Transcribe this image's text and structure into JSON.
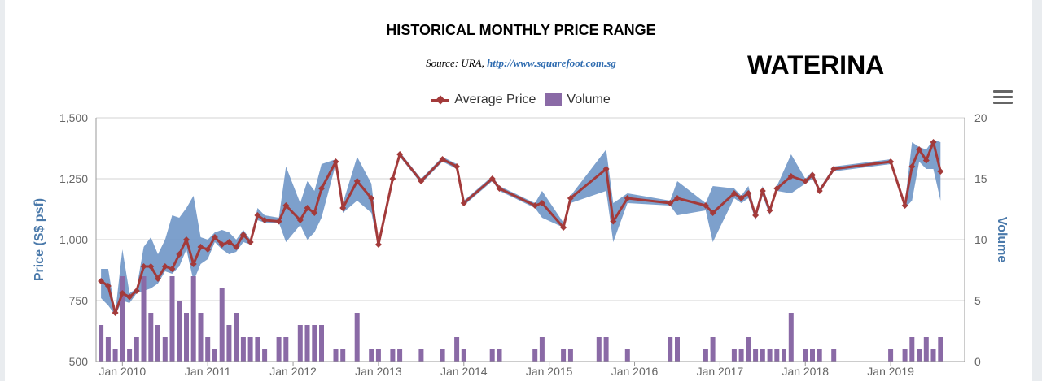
{
  "header": {
    "title": "HISTORICAL MONTHLY PRICE RANGE",
    "source_prefix": "Source: URA,",
    "source_link": "http://www.squarefoot.com.sg",
    "project_name": "WATERINA"
  },
  "legend": {
    "average_price": "Average Price",
    "volume": "Volume"
  },
  "colors": {
    "price_line": "#a33a3a",
    "range_band": "#6f96c7",
    "volume_bar": "#8a6aa6",
    "axis_title": "#4a79aa"
  },
  "chart_data": {
    "type": "line",
    "title": "HISTORICAL MONTHLY PRICE RANGE",
    "ylabel": "Price (S$ psf)",
    "y2label": "Volume",
    "ylim": [
      500,
      1500
    ],
    "y2lim": [
      0,
      20
    ],
    "yticks": [
      "500",
      "750",
      "1,000",
      "1,250",
      "1,500"
    ],
    "y2ticks": [
      "0",
      "5",
      "10",
      "15",
      "20"
    ],
    "xticks": [
      "Jan 2010",
      "Jan 2011",
      "Jan 2012",
      "Jan 2013",
      "Jan 2014",
      "Jan 2015",
      "Jan 2016",
      "Jan 2017",
      "Jan 2018",
      "Jan 2019"
    ],
    "grid": true,
    "legend_position": "top-center",
    "series": [
      {
        "name": "Average Price",
        "points": [
          [
            "2009-10",
            830
          ],
          [
            "2009-11",
            810
          ],
          [
            "2009-12",
            700
          ],
          [
            "2010-01",
            780
          ],
          [
            "2010-02",
            765
          ],
          [
            "2010-03",
            790
          ],
          [
            "2010-04",
            890
          ],
          [
            "2010-05",
            890
          ],
          [
            "2010-06",
            840
          ],
          [
            "2010-07",
            890
          ],
          [
            "2010-08",
            880
          ],
          [
            "2010-09",
            940
          ],
          [
            "2010-10",
            1000
          ],
          [
            "2010-11",
            900
          ],
          [
            "2010-12",
            970
          ],
          [
            "2011-01",
            960
          ],
          [
            "2011-02",
            1010
          ],
          [
            "2011-03",
            980
          ],
          [
            "2011-04",
            990
          ],
          [
            "2011-05",
            970
          ],
          [
            "2011-06",
            1020
          ],
          [
            "2011-07",
            990
          ],
          [
            "2011-08",
            1100
          ],
          [
            "2011-09",
            1080
          ],
          [
            "2011-11",
            1075
          ],
          [
            "2011-12",
            1140
          ],
          [
            "2012-02",
            1080
          ],
          [
            "2012-03",
            1130
          ],
          [
            "2012-04",
            1110
          ],
          [
            "2012-05",
            1210
          ],
          [
            "2012-07",
            1320
          ],
          [
            "2012-08",
            1130
          ],
          [
            "2012-10",
            1240
          ],
          [
            "2012-12",
            1170
          ],
          [
            "2013-01",
            980
          ],
          [
            "2013-03",
            1250
          ],
          [
            "2013-04",
            1350
          ],
          [
            "2013-07",
            1240
          ],
          [
            "2013-10",
            1330
          ],
          [
            "2013-12",
            1300
          ],
          [
            "2014-01",
            1150
          ],
          [
            "2014-05",
            1250
          ],
          [
            "2014-06",
            1210
          ],
          [
            "2014-11",
            1140
          ],
          [
            "2014-12",
            1150
          ],
          [
            "2015-03",
            1050
          ],
          [
            "2015-04",
            1170
          ],
          [
            "2015-09",
            1290
          ],
          [
            "2015-10",
            1075
          ],
          [
            "2015-12",
            1170
          ],
          [
            "2016-06",
            1150
          ],
          [
            "2016-07",
            1170
          ],
          [
            "2016-11",
            1140
          ],
          [
            "2016-12",
            1110
          ],
          [
            "2017-03",
            1190
          ],
          [
            "2017-04",
            1170
          ],
          [
            "2017-05",
            1190
          ],
          [
            "2017-06",
            1100
          ],
          [
            "2017-07",
            1200
          ],
          [
            "2017-08",
            1120
          ],
          [
            "2017-09",
            1210
          ],
          [
            "2017-11",
            1260
          ],
          [
            "2018-01",
            1240
          ],
          [
            "2018-02",
            1265
          ],
          [
            "2018-03",
            1200
          ],
          [
            "2018-05",
            1290
          ],
          [
            "2019-01",
            1320
          ],
          [
            "2019-03",
            1140
          ],
          [
            "2019-04",
            1300
          ],
          [
            "2019-05",
            1370
          ],
          [
            "2019-06",
            1325
          ],
          [
            "2019-07",
            1400
          ],
          [
            "2019-08",
            1280
          ]
        ]
      },
      {
        "name": "Price Range",
        "points": [
          [
            "2009-10",
            760,
            880
          ],
          [
            "2009-11",
            730,
            880
          ],
          [
            "2009-12",
            690,
            700
          ],
          [
            "2010-01",
            750,
            960
          ],
          [
            "2010-02",
            740,
            780
          ],
          [
            "2010-03",
            780,
            800
          ],
          [
            "2010-04",
            790,
            970
          ],
          [
            "2010-05",
            800,
            1010
          ],
          [
            "2010-06",
            820,
            940
          ],
          [
            "2010-07",
            870,
            1000
          ],
          [
            "2010-08",
            860,
            1100
          ],
          [
            "2010-09",
            890,
            1090
          ],
          [
            "2010-10",
            960,
            1130
          ],
          [
            "2010-11",
            830,
            1180
          ],
          [
            "2010-12",
            900,
            1010
          ],
          [
            "2011-01",
            920,
            1000
          ],
          [
            "2011-02",
            990,
            1030
          ],
          [
            "2011-03",
            960,
            1040
          ],
          [
            "2011-04",
            940,
            1030
          ],
          [
            "2011-05",
            950,
            1000
          ],
          [
            "2011-06",
            990,
            1040
          ],
          [
            "2011-07",
            980,
            1000
          ],
          [
            "2011-08",
            1080,
            1130
          ],
          [
            "2011-09",
            1070,
            1100
          ],
          [
            "2011-11",
            1070,
            1090
          ],
          [
            "2011-12",
            990,
            1300
          ],
          [
            "2012-02",
            1060,
            1150
          ],
          [
            "2012-03",
            1000,
            1240
          ],
          [
            "2012-04",
            1030,
            1200
          ],
          [
            "2012-05",
            1090,
            1310
          ],
          [
            "2012-07",
            1310,
            1330
          ],
          [
            "2012-08",
            1110,
            1150
          ],
          [
            "2012-10",
            1160,
            1340
          ],
          [
            "2012-12",
            1110,
            1230
          ],
          [
            "2013-01",
            970,
            990
          ],
          [
            "2013-03",
            1240,
            1260
          ],
          [
            "2013-04",
            1340,
            1360
          ],
          [
            "2013-07",
            1230,
            1250
          ],
          [
            "2013-10",
            1320,
            1340
          ],
          [
            "2013-12",
            1290,
            1310
          ],
          [
            "2014-01",
            1140,
            1160
          ],
          [
            "2014-05",
            1240,
            1260
          ],
          [
            "2014-06",
            1200,
            1220
          ],
          [
            "2014-11",
            1130,
            1150
          ],
          [
            "2014-12",
            1090,
            1200
          ],
          [
            "2015-03",
            1050,
            1070
          ],
          [
            "2015-04",
            1150,
            1180
          ],
          [
            "2015-09",
            1200,
            1370
          ],
          [
            "2015-10",
            990,
            1150
          ],
          [
            "2015-12",
            1150,
            1190
          ],
          [
            "2016-06",
            1140,
            1160
          ],
          [
            "2016-07",
            1100,
            1240
          ],
          [
            "2016-11",
            1120,
            1150
          ],
          [
            "2016-12",
            990,
            1220
          ],
          [
            "2017-03",
            1170,
            1210
          ],
          [
            "2017-04",
            1150,
            1180
          ],
          [
            "2017-05",
            1170,
            1220
          ],
          [
            "2017-06",
            1080,
            1110
          ],
          [
            "2017-07",
            1180,
            1220
          ],
          [
            "2017-08",
            1100,
            1130
          ],
          [
            "2017-09",
            1200,
            1220
          ],
          [
            "2017-11",
            1190,
            1350
          ],
          [
            "2018-01",
            1230,
            1250
          ],
          [
            "2018-02",
            1250,
            1280
          ],
          [
            "2018-03",
            1190,
            1210
          ],
          [
            "2018-05",
            1280,
            1300
          ],
          [
            "2019-01",
            1310,
            1330
          ],
          [
            "2019-03",
            1130,
            1150
          ],
          [
            "2019-04",
            1160,
            1400
          ],
          [
            "2019-05",
            1320,
            1380
          ],
          [
            "2019-06",
            1290,
            1370
          ],
          [
            "2019-07",
            1290,
            1410
          ],
          [
            "2019-08",
            1160,
            1400
          ]
        ]
      },
      {
        "name": "Volume",
        "points": [
          [
            "2009-10",
            3
          ],
          [
            "2009-11",
            2
          ],
          [
            "2009-12",
            1
          ],
          [
            "2010-01",
            7
          ],
          [
            "2010-02",
            1
          ],
          [
            "2010-03",
            2
          ],
          [
            "2010-04",
            7
          ],
          [
            "2010-05",
            4
          ],
          [
            "2010-06",
            3
          ],
          [
            "2010-07",
            2
          ],
          [
            "2010-08",
            7
          ],
          [
            "2010-09",
            5
          ],
          [
            "2010-10",
            4
          ],
          [
            "2010-11",
            7
          ],
          [
            "2010-12",
            4
          ],
          [
            "2011-01",
            2
          ],
          [
            "2011-02",
            1
          ],
          [
            "2011-03",
            6
          ],
          [
            "2011-04",
            3
          ],
          [
            "2011-05",
            4
          ],
          [
            "2011-06",
            2
          ],
          [
            "2011-07",
            2
          ],
          [
            "2011-08",
            2
          ],
          [
            "2011-09",
            1
          ],
          [
            "2011-11",
            2
          ],
          [
            "2011-12",
            2
          ],
          [
            "2012-02",
            3
          ],
          [
            "2012-03",
            3
          ],
          [
            "2012-04",
            3
          ],
          [
            "2012-05",
            3
          ],
          [
            "2012-07",
            1
          ],
          [
            "2012-08",
            1
          ],
          [
            "2012-10",
            4
          ],
          [
            "2012-12",
            1
          ],
          [
            "2013-01",
            1
          ],
          [
            "2013-03",
            1
          ],
          [
            "2013-04",
            1
          ],
          [
            "2013-07",
            1
          ],
          [
            "2013-10",
            1
          ],
          [
            "2013-12",
            2
          ],
          [
            "2014-01",
            1
          ],
          [
            "2014-05",
            1
          ],
          [
            "2014-06",
            1
          ],
          [
            "2014-11",
            1
          ],
          [
            "2014-12",
            2
          ],
          [
            "2015-03",
            1
          ],
          [
            "2015-04",
            1
          ],
          [
            "2015-08",
            2
          ],
          [
            "2015-09",
            2
          ],
          [
            "2015-12",
            1
          ],
          [
            "2016-06",
            2
          ],
          [
            "2016-07",
            2
          ],
          [
            "2016-11",
            1
          ],
          [
            "2016-12",
            2
          ],
          [
            "2017-03",
            1
          ],
          [
            "2017-04",
            1
          ],
          [
            "2017-05",
            2
          ],
          [
            "2017-06",
            1
          ],
          [
            "2017-07",
            1
          ],
          [
            "2017-08",
            1
          ],
          [
            "2017-09",
            1
          ],
          [
            "2017-10",
            1
          ],
          [
            "2017-11",
            4
          ],
          [
            "2018-01",
            1
          ],
          [
            "2018-02",
            1
          ],
          [
            "2018-03",
            1
          ],
          [
            "2018-05",
            1
          ],
          [
            "2019-01",
            1
          ],
          [
            "2019-03",
            1
          ],
          [
            "2019-04",
            2
          ],
          [
            "2019-05",
            1
          ],
          [
            "2019-06",
            2
          ],
          [
            "2019-07",
            1
          ],
          [
            "2019-08",
            2
          ]
        ]
      }
    ]
  }
}
